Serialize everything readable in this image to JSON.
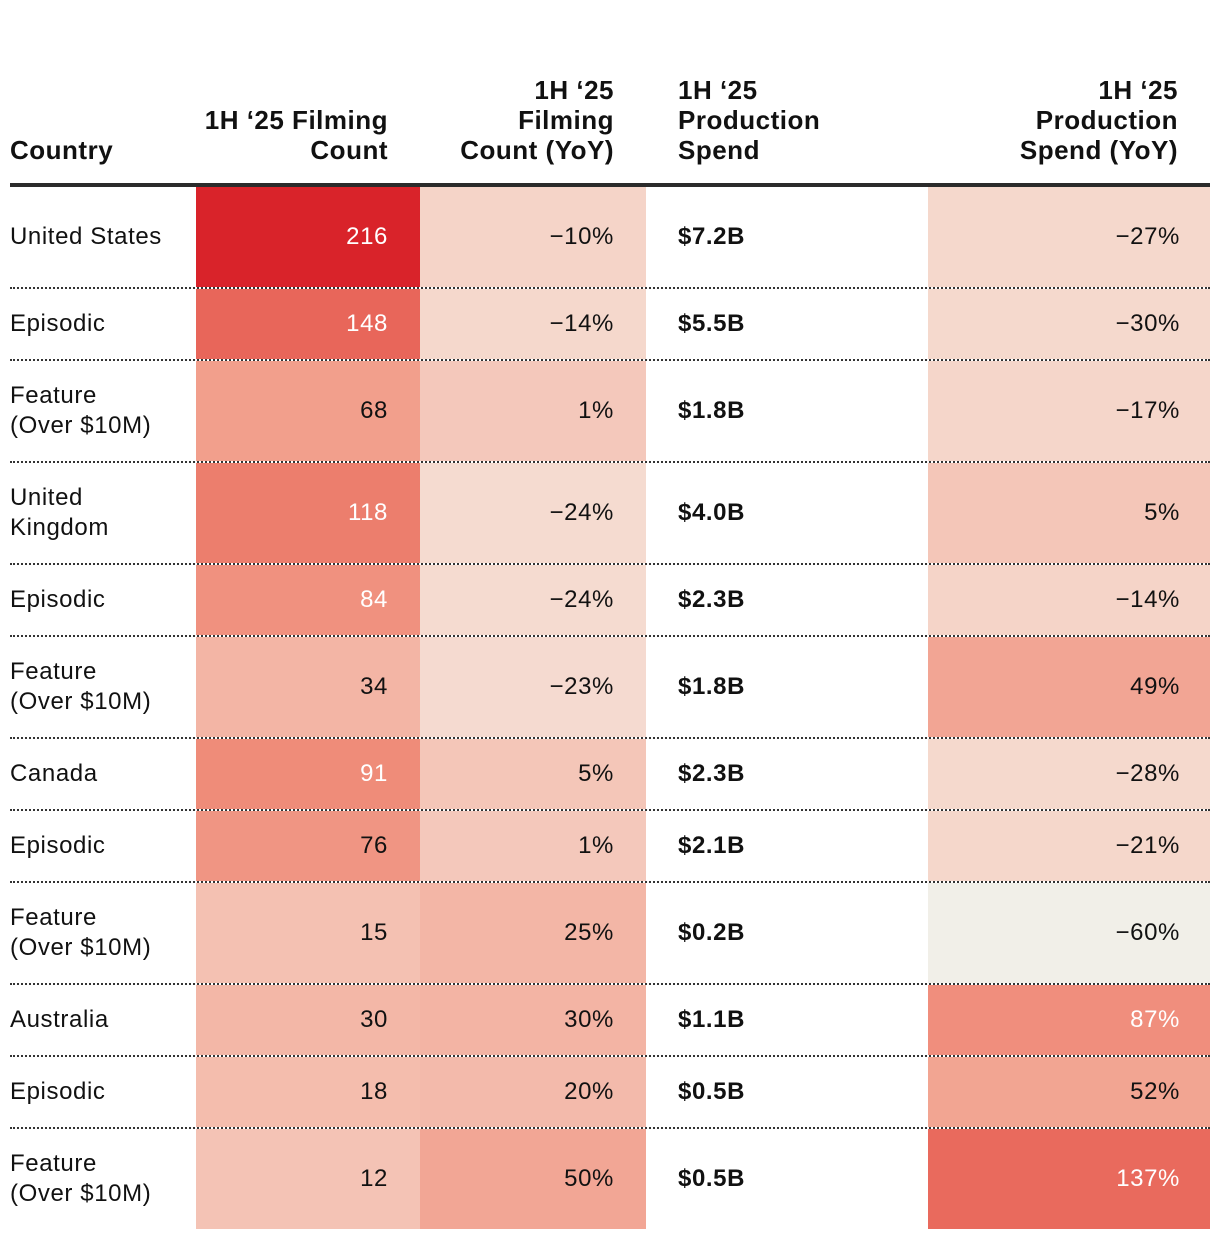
{
  "chart_data": {
    "type": "table",
    "columns": [
      "Country",
      "1H ‘25 Filming Count",
      "1H ‘25 Filming Count (YoY)",
      "1H ‘25 Production Spend",
      "1H ‘25 Production Spend (YoY)"
    ],
    "rows": [
      {
        "country": "United States",
        "filming_count": "216",
        "filming_yoy": "−10%",
        "spend": "$7.2B",
        "spend_yoy": "−27%",
        "colors": {
          "filming_count": "#d9232a",
          "filming_yoy": "#f5d4c8",
          "spend_yoy": "#f5d8cc"
        },
        "white_text": {
          "filming_count": true,
          "spend_yoy": false
        }
      },
      {
        "country": "Episodic",
        "filming_count": "148",
        "filming_yoy": "−14%",
        "spend": "$5.5B",
        "spend_yoy": "−30%",
        "colors": {
          "filming_count": "#e8665a",
          "filming_yoy": "#f5d8cc",
          "spend_yoy": "#f5d9cd"
        },
        "white_text": {
          "filming_count": true,
          "spend_yoy": false
        }
      },
      {
        "country": "Feature\n(Over $10M)",
        "filming_count": "68",
        "filming_yoy": "1%",
        "spend": "$1.8B",
        "spend_yoy": "−17%",
        "colors": {
          "filming_count": "#f29f8c",
          "filming_yoy": "#f4c8bb",
          "spend_yoy": "#f5d6ca"
        },
        "white_text": {
          "filming_count": false,
          "spend_yoy": false
        }
      },
      {
        "country": "United\nKingdom",
        "filming_count": "118",
        "filming_yoy": "−24%",
        "spend": "$4.0B",
        "spend_yoy": "5%",
        "colors": {
          "filming_count": "#ec7e6d",
          "filming_yoy": "#f5dbd0",
          "spend_yoy": "#f4c6b8"
        },
        "white_text": {
          "filming_count": true,
          "spend_yoy": false
        }
      },
      {
        "country": "Episodic",
        "filming_count": "84",
        "filming_yoy": "−24%",
        "spend": "$2.3B",
        "spend_yoy": "−14%",
        "colors": {
          "filming_count": "#f0917f",
          "filming_yoy": "#f5dbd0",
          "spend_yoy": "#f5d4c8"
        },
        "white_text": {
          "filming_count": true,
          "spend_yoy": false
        }
      },
      {
        "country": "Feature\n(Over $10M)",
        "filming_count": "34",
        "filming_yoy": "−23%",
        "spend": "$1.8B",
        "spend_yoy": "49%",
        "colors": {
          "filming_count": "#f3b5a5",
          "filming_yoy": "#f5dad0",
          "spend_yoy": "#f2a594"
        },
        "white_text": {
          "filming_count": false,
          "spend_yoy": false
        }
      },
      {
        "country": "Canada",
        "filming_count": "91",
        "filming_yoy": "5%",
        "spend": "$2.3B",
        "spend_yoy": "−28%",
        "colors": {
          "filming_count": "#ef8c79",
          "filming_yoy": "#f4c6b8",
          "spend_yoy": "#f5d9cd"
        },
        "white_text": {
          "filming_count": true,
          "spend_yoy": false
        }
      },
      {
        "country": "Episodic",
        "filming_count": "76",
        "filming_yoy": "1%",
        "spend": "$2.1B",
        "spend_yoy": "−21%",
        "colors": {
          "filming_count": "#f09583",
          "filming_yoy": "#f4c8bb",
          "spend_yoy": "#f5d7cb"
        },
        "white_text": {
          "filming_count": false,
          "spend_yoy": false
        }
      },
      {
        "country": "Feature\n(Over $10M)",
        "filming_count": "15",
        "filming_yoy": "25%",
        "spend": "$0.2B",
        "spend_yoy": "−60%",
        "colors": {
          "filming_count": "#f4c1b2",
          "filming_yoy": "#f3b6a6",
          "spend_yoy": "#f1efe8"
        },
        "white_text": {
          "filming_count": false,
          "spend_yoy": false
        }
      },
      {
        "country": "Australia",
        "filming_count": "30",
        "filming_yoy": "30%",
        "spend": "$1.1B",
        "spend_yoy": "87%",
        "colors": {
          "filming_count": "#f3b7a7",
          "filming_yoy": "#f3b4a4",
          "spend_yoy": "#f08e7d"
        },
        "white_text": {
          "filming_count": false,
          "spend_yoy": true
        }
      },
      {
        "country": "Episodic",
        "filming_count": "18",
        "filming_yoy": "20%",
        "spend": "$0.5B",
        "spend_yoy": "52%",
        "colors": {
          "filming_count": "#f4bdad",
          "filming_yoy": "#f3baab",
          "spend_yoy": "#f2a592"
        },
        "white_text": {
          "filming_count": false,
          "spend_yoy": false
        }
      },
      {
        "country": "Feature\n(Over $10M)",
        "filming_count": "12",
        "filming_yoy": "50%",
        "spend": "$0.5B",
        "spend_yoy": "137%",
        "colors": {
          "filming_count": "#f4c3b5",
          "filming_yoy": "#f2a695",
          "spend_yoy": "#e96a5d"
        },
        "white_text": {
          "filming_count": false,
          "spend_yoy": true
        }
      }
    ]
  }
}
